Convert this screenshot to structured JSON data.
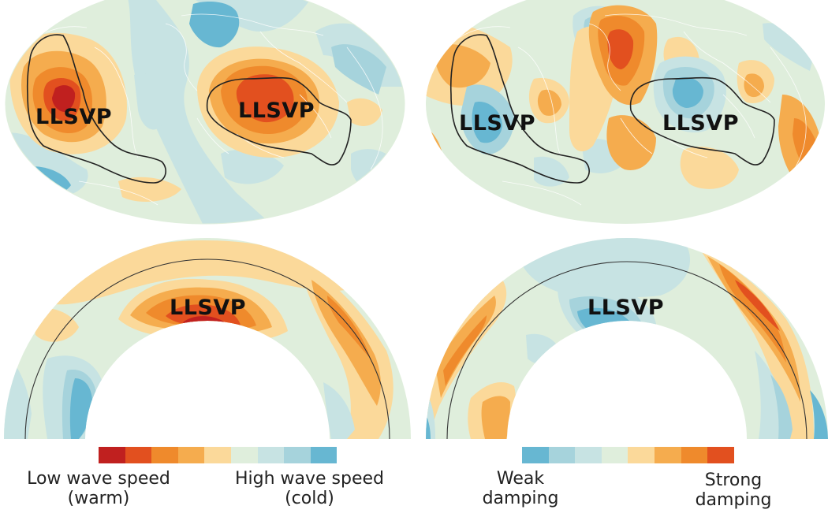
{
  "labels": {
    "map_left": "LLSVP",
    "map_right": "LLSVP",
    "map_right_2": "LLSVP",
    "section_left": "LLSVP",
    "section_right": "LLSVP",
    "map_left_2": "LLSVP"
  },
  "legend_left": {
    "low_line1": "Low wave speed",
    "low_line2": "(warm)",
    "high_line1": "High wave speed",
    "high_line2": "(cold)",
    "colors": [
      "#c0201f",
      "#e2501f",
      "#ef8a2c",
      "#f5ac4e",
      "#fbd99a",
      "#dfeedc",
      "#c7e3e3",
      "#a6d3dc",
      "#67b7d2"
    ]
  },
  "legend_right": {
    "weak_line1": "Weak",
    "weak_line2": "damping",
    "strong_line1": "Strong",
    "strong_line2": "damping",
    "colors": [
      "#67b7d2",
      "#a6d3dc",
      "#c7e3e3",
      "#dfeedc",
      "#fbd99a",
      "#f5ac4e",
      "#ef8a2c",
      "#e2501f"
    ]
  }
}
